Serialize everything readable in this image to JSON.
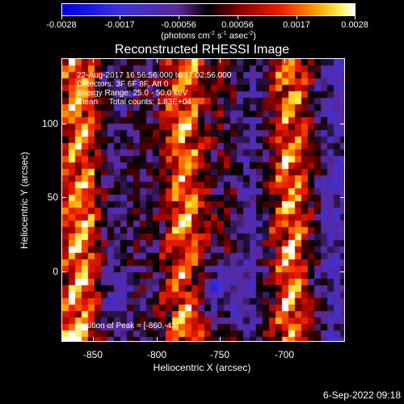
{
  "colorbar": {
    "labels": [
      "-0.0028",
      "-0.0017",
      "-0.00056",
      "0.00056",
      "0.0017",
      "0.0028"
    ],
    "unit_prefix": "(photons cm",
    "unit_exp1": "-2",
    "unit_mid1": " s",
    "unit_exp2": "-1",
    "unit_mid2": " asec",
    "unit_exp3": "-2",
    "unit_suffix": ")"
  },
  "title": "Reconstructed RHESSI Image",
  "info": {
    "line1": "22-Aug-2017 16:56:56.000 to 17:02:56.000",
    "line2": "Detectors: 3F 6F 8F, Att 0",
    "line3": "Energy Range: 25.0 - 50.0 keV",
    "line4": "Clean     Total counts: 1.83E+04"
  },
  "peak": "Position of Peak = [-860,-43]",
  "xaxis": {
    "label": "Heliocentric X (arcsec)",
    "ticks": [
      "-850",
      "-800",
      "-750",
      "-700"
    ]
  },
  "yaxis": {
    "label": "Heliocentric Y (arcsec)",
    "ticks": [
      "100",
      "50",
      "0"
    ]
  },
  "timestamp": "6-Sep-2022 09:18",
  "chart_data": {
    "type": "heatmap",
    "title": "Reconstructed RHESSI Image",
    "xlabel": "Heliocentric X (arcsec)",
    "ylabel": "Heliocentric Y (arcsec)",
    "xlim": [
      -865,
      -672
    ],
    "ylim": [
      -55,
      120
    ],
    "color_range": [
      -0.0028,
      0.0028
    ],
    "colormap": "blue-black-red-yellow-white",
    "peak_position": [
      -860,
      -43
    ]
  }
}
